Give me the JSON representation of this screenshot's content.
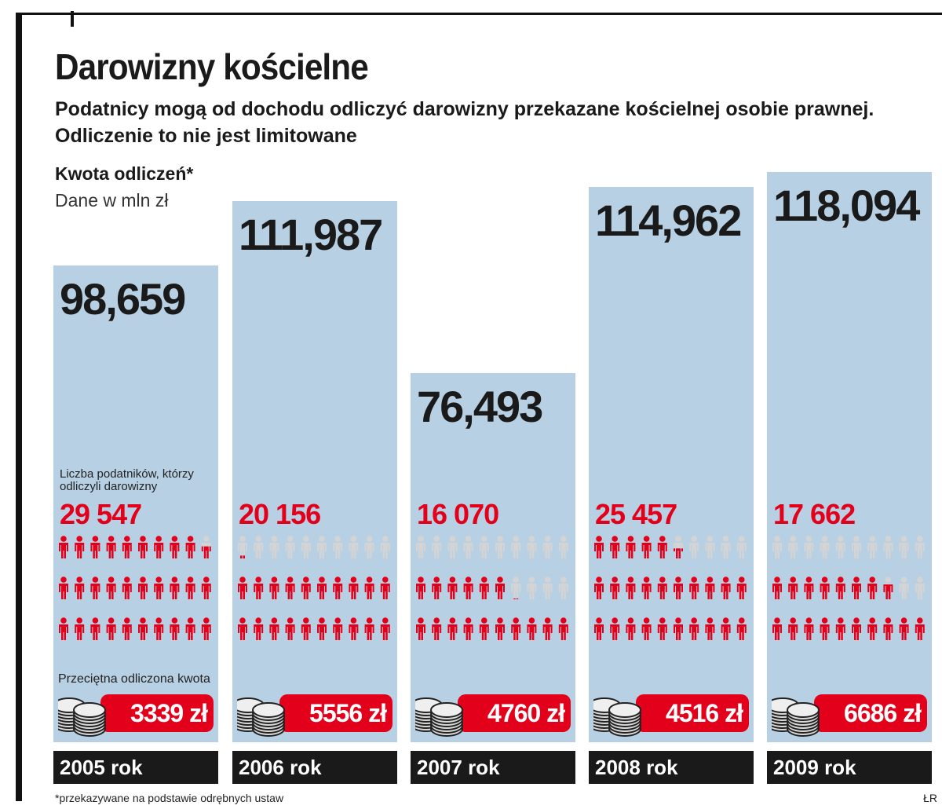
{
  "title": "Darowizny kościelne",
  "subtitle": "Podatnicy mogą od dochodu odliczyć darowizny przekazane kościelnej osobie prawnej. Odliczenie to nie jest limitowane",
  "metric_title": "Kwota odliczeń*",
  "unit_label": "Dane w mln zł",
  "count_label": "Liczba podatników, którzy odliczyli darowizny",
  "avg_label": "Przeciętna odliczona kwota",
  "footnote": "*przekazywane na podstawie odrębnych ustaw",
  "credit": "ŁR",
  "colors": {
    "bar": "#b8d0e3",
    "accent": "#e3001b",
    "person_empty": "#d4d4d4",
    "year_bar": "#1a1a1a"
  },
  "chart_data": {
    "type": "bar",
    "title": "Darowizny kościelne",
    "ylabel": "Dane w mln zł",
    "ylim": [
      0,
      120
    ],
    "categories": [
      "2005 rok",
      "2006 rok",
      "2007 rok",
      "2008 rok",
      "2009 rok"
    ],
    "series": [
      {
        "name": "Kwota odliczeń*",
        "values": [
          98.659,
          111.987,
          76.493,
          114.962,
          118.094
        ]
      }
    ],
    "value_labels": [
      "98,659",
      "111,987",
      "76,493",
      "114,962",
      "118,094"
    ],
    "taxpayers": [
      29547,
      20156,
      16070,
      25457,
      17662
    ],
    "taxpayers_labels": [
      "29 547",
      "20 156",
      "16 070",
      "25 457",
      "17 662"
    ],
    "avg_amount_labels": [
      "3339 zł",
      "5556 zł",
      "4760 zł",
      "4516 zł",
      "6686 zł"
    ]
  }
}
